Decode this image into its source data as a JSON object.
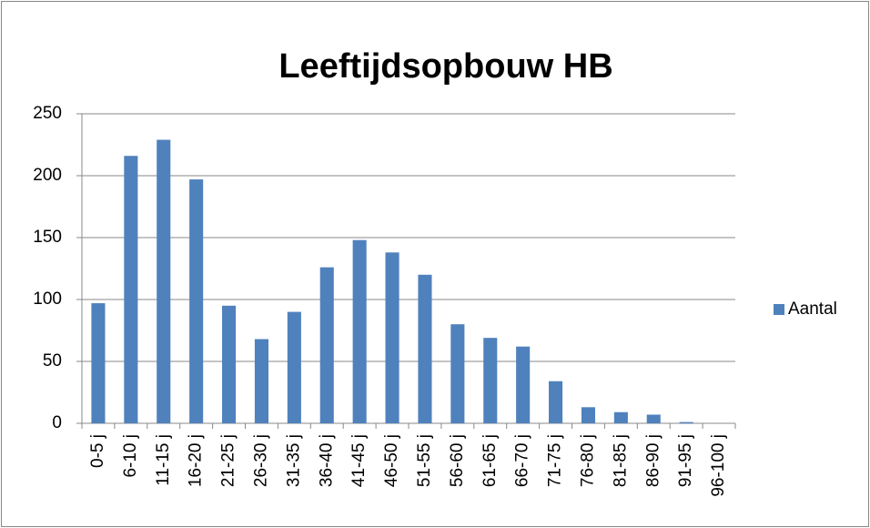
{
  "chart_data": {
    "type": "bar",
    "title": "Leeftijdsopbouw HB",
    "categories": [
      "0-5 j",
      "6-10 j",
      "11-15 j",
      "16-20 j",
      "21-25 j",
      "26-30 j",
      "31-35 j",
      "36-40 j",
      "41-45 j",
      "46-50 j",
      "51-55 j",
      "56-60 j",
      "61-65 j",
      "66-70 j",
      "71-75 j",
      "76-80 j",
      "81-85 j",
      "86-90 j",
      "91-95 j",
      "96-100 j"
    ],
    "series": [
      {
        "name": "Aantal",
        "color": "#4f81bd",
        "values": [
          97,
          216,
          229,
          197,
          95,
          68,
          90,
          126,
          148,
          138,
          120,
          80,
          69,
          62,
          34,
          13,
          9,
          7,
          1,
          0
        ]
      }
    ],
    "ylim": [
      0,
      250
    ],
    "yticks": [
      0,
      50,
      100,
      150,
      200,
      250
    ],
    "grid": true,
    "legend": "right"
  }
}
